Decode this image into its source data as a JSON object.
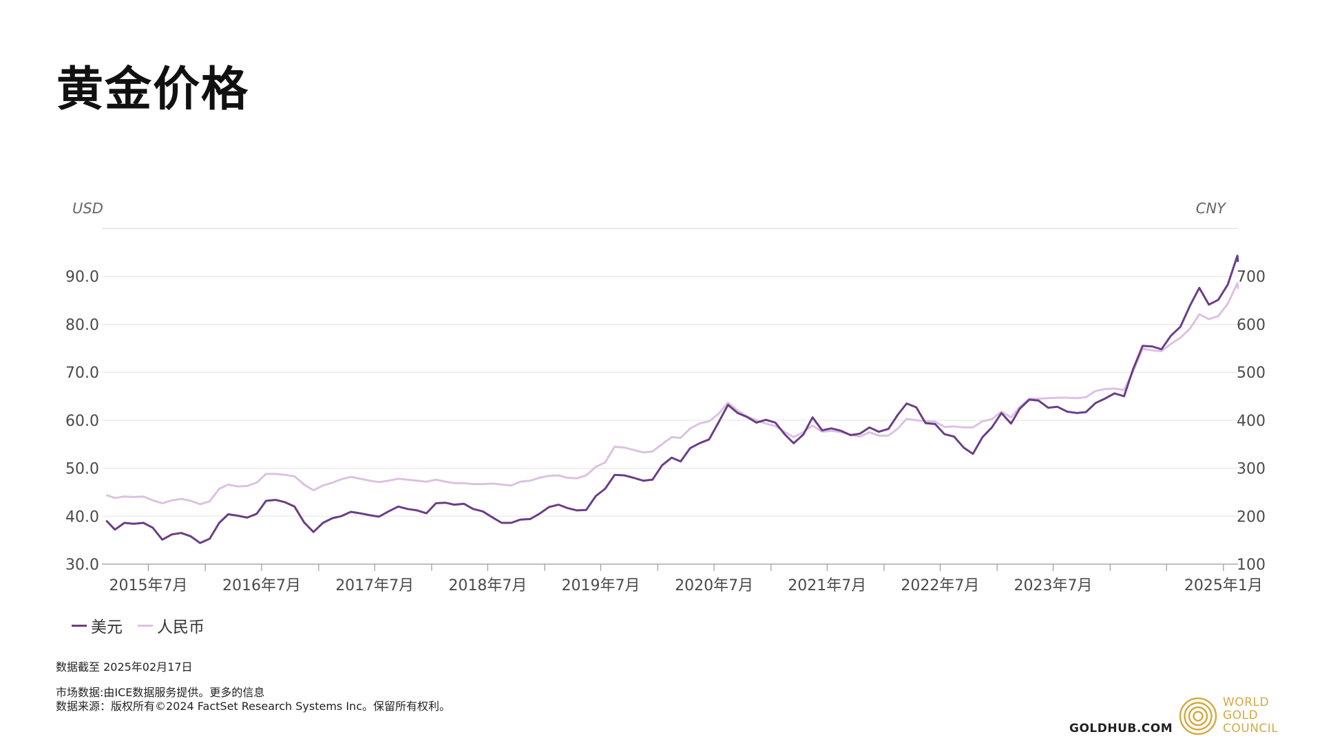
{
  "title": "黄金价格",
  "legend": {
    "usd": "美元",
    "cny": "人民币"
  },
  "footer": {
    "date_line": "数据截至 2025年02月17日",
    "source_line1": "市场数据:由ICE数据服务提供。更多的信息",
    "source_line2": "数据来源：版权所有©2024 FactSet Research Systems Inc。保留所有权利。",
    "site": "GOLDHUB.COM",
    "brand_lines": [
      "WORLD",
      "GOLD",
      "COUNCIL"
    ]
  },
  "colors": {
    "usd": "#6b3d86",
    "cny": "#dcc1e2",
    "grid": "#e2e2e2",
    "brand": "#d4a943"
  },
  "chart_data": {
    "type": "line",
    "title": "黄金价格",
    "left_axis_unit": "USD",
    "right_axis_unit": "CNY",
    "left_ylim": [
      30,
      100
    ],
    "right_ylim": [
      100,
      800
    ],
    "left_ticks": [
      "30.0",
      "40.0",
      "50.0",
      "60.0",
      "70.0",
      "80.0",
      "90.0"
    ],
    "right_ticks": [
      "100",
      "200",
      "300",
      "400",
      "500",
      "600",
      "700"
    ],
    "x_range": [
      "2015-02-01",
      "2025-02-17"
    ],
    "x_tick_labels": [
      {
        "label": "2015年7月",
        "date": "2015-07-01"
      },
      {
        "label": "2016年7月",
        "date": "2016-07-01"
      },
      {
        "label": "2017年7月",
        "date": "2017-07-01"
      },
      {
        "label": "2018年7月",
        "date": "2018-07-01"
      },
      {
        "label": "2019年7月",
        "date": "2019-07-01"
      },
      {
        "label": "2020年7月",
        "date": "2020-07-01"
      },
      {
        "label": "2021年7月",
        "date": "2021-07-01"
      },
      {
        "label": "2022年7月",
        "date": "2022-07-01"
      },
      {
        "label": "2023年7月",
        "date": "2023-07-01"
      },
      {
        "label": "2025年1月",
        "date": "2025-01-01"
      }
    ],
    "x_minor_ticks": [
      "2016-01-01",
      "2017-01-01",
      "2018-01-01",
      "2019-01-01",
      "2020-01-01",
      "2021-01-01",
      "2022-01-01",
      "2023-01-01",
      "2024-01-01",
      "2024-07-01"
    ],
    "grid": true,
    "legend_position": "bottom-left",
    "series": [
      {
        "name": "美元",
        "axis": "left",
        "points": [
          [
            "2015-02",
            39.1
          ],
          [
            "2015-03",
            37.2
          ],
          [
            "2015-04",
            38.6
          ],
          [
            "2015-05",
            38.4
          ],
          [
            "2015-06",
            38.6
          ],
          [
            "2015-07",
            37.6
          ],
          [
            "2015-08",
            35.1
          ],
          [
            "2015-09",
            36.2
          ],
          [
            "2015-10",
            36.5
          ],
          [
            "2015-11",
            35.8
          ],
          [
            "2015-12",
            34.4
          ],
          [
            "2016-01",
            35.3
          ],
          [
            "2016-02",
            38.6
          ],
          [
            "2016-03",
            40.4
          ],
          [
            "2016-04",
            40.1
          ],
          [
            "2016-05",
            39.7
          ],
          [
            "2016-06",
            40.5
          ],
          [
            "2016-07",
            43.2
          ],
          [
            "2016-08",
            43.4
          ],
          [
            "2016-09",
            42.9
          ],
          [
            "2016-10",
            42.0
          ],
          [
            "2016-11",
            38.7
          ],
          [
            "2016-12",
            36.7
          ],
          [
            "2017-01",
            38.6
          ],
          [
            "2017-02",
            39.6
          ],
          [
            "2017-03",
            40.0
          ],
          [
            "2017-04",
            40.9
          ],
          [
            "2017-05",
            40.6
          ],
          [
            "2017-06",
            40.2
          ],
          [
            "2017-07",
            39.9
          ],
          [
            "2017-08",
            41.0
          ],
          [
            "2017-09",
            42.0
          ],
          [
            "2017-10",
            41.5
          ],
          [
            "2017-11",
            41.2
          ],
          [
            "2017-12",
            40.6
          ],
          [
            "2018-01",
            42.7
          ],
          [
            "2018-02",
            42.8
          ],
          [
            "2018-03",
            42.4
          ],
          [
            "2018-04",
            42.6
          ],
          [
            "2018-05",
            41.5
          ],
          [
            "2018-06",
            41.0
          ],
          [
            "2018-07",
            39.8
          ],
          [
            "2018-08",
            38.6
          ],
          [
            "2018-09",
            38.6
          ],
          [
            "2018-10",
            39.3
          ],
          [
            "2018-11",
            39.4
          ],
          [
            "2018-12",
            40.5
          ],
          [
            "2019-01",
            41.9
          ],
          [
            "2019-02",
            42.4
          ],
          [
            "2019-03",
            41.7
          ],
          [
            "2019-04",
            41.2
          ],
          [
            "2019-05",
            41.3
          ],
          [
            "2019-06",
            44.2
          ],
          [
            "2019-07",
            45.7
          ],
          [
            "2019-08",
            48.6
          ],
          [
            "2019-09",
            48.5
          ],
          [
            "2019-10",
            48.0
          ],
          [
            "2019-11",
            47.4
          ],
          [
            "2019-12",
            47.6
          ],
          [
            "2020-01",
            50.6
          ],
          [
            "2020-02",
            52.2
          ],
          [
            "2020-03",
            51.4
          ],
          [
            "2020-04",
            54.2
          ],
          [
            "2020-05",
            55.2
          ],
          [
            "2020-06",
            56.0
          ],
          [
            "2020-07",
            59.5
          ],
          [
            "2020-08",
            63.2
          ],
          [
            "2020-09",
            61.5
          ],
          [
            "2020-10",
            60.7
          ],
          [
            "2020-11",
            59.5
          ],
          [
            "2020-12",
            60.1
          ],
          [
            "2021-01",
            59.5
          ],
          [
            "2021-02",
            57.0
          ],
          [
            "2021-03",
            55.2
          ],
          [
            "2021-04",
            57.0
          ],
          [
            "2021-05",
            60.6
          ],
          [
            "2021-06",
            57.9
          ],
          [
            "2021-07",
            58.3
          ],
          [
            "2021-08",
            57.8
          ],
          [
            "2021-09",
            56.9
          ],
          [
            "2021-10",
            57.2
          ],
          [
            "2021-11",
            58.5
          ],
          [
            "2021-12",
            57.6
          ],
          [
            "2022-01",
            58.2
          ],
          [
            "2022-02",
            61.2
          ],
          [
            "2022-03",
            63.5
          ],
          [
            "2022-04",
            62.7
          ],
          [
            "2022-05",
            59.4
          ],
          [
            "2022-06",
            59.2
          ],
          [
            "2022-07",
            57.1
          ],
          [
            "2022-08",
            56.6
          ],
          [
            "2022-09",
            54.3
          ],
          [
            "2022-10",
            53.0
          ],
          [
            "2022-11",
            56.5
          ],
          [
            "2022-12",
            58.5
          ],
          [
            "2023-01",
            61.5
          ],
          [
            "2023-02",
            59.3
          ],
          [
            "2023-03",
            62.4
          ],
          [
            "2023-04",
            64.3
          ],
          [
            "2023-05",
            64.1
          ],
          [
            "2023-06",
            62.6
          ],
          [
            "2023-07",
            62.8
          ],
          [
            "2023-08",
            61.8
          ],
          [
            "2023-09",
            61.5
          ],
          [
            "2023-10",
            61.7
          ],
          [
            "2023-11",
            63.6
          ],
          [
            "2023-12",
            64.5
          ],
          [
            "2024-01",
            65.6
          ],
          [
            "2024-02",
            65.0
          ],
          [
            "2024-03",
            70.6
          ],
          [
            "2024-04",
            75.5
          ],
          [
            "2024-05",
            75.4
          ],
          [
            "2024-06",
            74.8
          ],
          [
            "2024-07",
            77.6
          ],
          [
            "2024-08",
            79.5
          ],
          [
            "2024-09",
            83.9
          ],
          [
            "2024-10",
            87.6
          ],
          [
            "2024-11",
            84.1
          ],
          [
            "2024-12",
            85.1
          ],
          [
            "2025-01",
            88.3
          ],
          [
            "2025-02",
            94.3
          ],
          [
            "2025-02-17",
            93.0
          ]
        ]
      },
      {
        "name": "人民币",
        "axis": "right",
        "points": [
          [
            "2015-02",
            244
          ],
          [
            "2015-03",
            238
          ],
          [
            "2015-04",
            241
          ],
          [
            "2015-05",
            240
          ],
          [
            "2015-06",
            241
          ],
          [
            "2015-07",
            233
          ],
          [
            "2015-08",
            227
          ],
          [
            "2015-09",
            233
          ],
          [
            "2015-10",
            236
          ],
          [
            "2015-11",
            232
          ],
          [
            "2015-12",
            225
          ],
          [
            "2016-01",
            231
          ],
          [
            "2016-02",
            257
          ],
          [
            "2016-03",
            266
          ],
          [
            "2016-04",
            262
          ],
          [
            "2016-05",
            263
          ],
          [
            "2016-06",
            270
          ],
          [
            "2016-07",
            288
          ],
          [
            "2016-08",
            288
          ],
          [
            "2016-09",
            286
          ],
          [
            "2016-10",
            283
          ],
          [
            "2016-11",
            266
          ],
          [
            "2016-12",
            254
          ],
          [
            "2017-01",
            264
          ],
          [
            "2017-02",
            270
          ],
          [
            "2017-03",
            277
          ],
          [
            "2017-04",
            282
          ],
          [
            "2017-05",
            278
          ],
          [
            "2017-06",
            274
          ],
          [
            "2017-07",
            271
          ],
          [
            "2017-08",
            274
          ],
          [
            "2017-09",
            278
          ],
          [
            "2017-10",
            276
          ],
          [
            "2017-11",
            274
          ],
          [
            "2017-12",
            272
          ],
          [
            "2018-01",
            276
          ],
          [
            "2018-02",
            272
          ],
          [
            "2018-03",
            269
          ],
          [
            "2018-04",
            269
          ],
          [
            "2018-05",
            267
          ],
          [
            "2018-06",
            267
          ],
          [
            "2018-07",
            268
          ],
          [
            "2018-08",
            266
          ],
          [
            "2018-09",
            264
          ],
          [
            "2018-10",
            272
          ],
          [
            "2018-11",
            274
          ],
          [
            "2018-12",
            280
          ],
          [
            "2019-01",
            284
          ],
          [
            "2019-02",
            285
          ],
          [
            "2019-03",
            280
          ],
          [
            "2019-04",
            279
          ],
          [
            "2019-05",
            285
          ],
          [
            "2019-06",
            303
          ],
          [
            "2019-07",
            312
          ],
          [
            "2019-08",
            345
          ],
          [
            "2019-09",
            343
          ],
          [
            "2019-10",
            338
          ],
          [
            "2019-11",
            333
          ],
          [
            "2019-12",
            335
          ],
          [
            "2020-01",
            350
          ],
          [
            "2020-02",
            365
          ],
          [
            "2020-03",
            363
          ],
          [
            "2020-04",
            383
          ],
          [
            "2020-05",
            393
          ],
          [
            "2020-06",
            398
          ],
          [
            "2020-07",
            413
          ],
          [
            "2020-08",
            437
          ],
          [
            "2020-09",
            420
          ],
          [
            "2020-10",
            408
          ],
          [
            "2020-11",
            400
          ],
          [
            "2020-12",
            393
          ],
          [
            "2021-01",
            388
          ],
          [
            "2021-02",
            375
          ],
          [
            "2021-03",
            365
          ],
          [
            "2021-04",
            375
          ],
          [
            "2021-05",
            389
          ],
          [
            "2021-06",
            376
          ],
          [
            "2021-07",
            378
          ],
          [
            "2021-08",
            375
          ],
          [
            "2021-09",
            370
          ],
          [
            "2021-10",
            366
          ],
          [
            "2021-11",
            375
          ],
          [
            "2021-12",
            368
          ],
          [
            "2022-01",
            368
          ],
          [
            "2022-02",
            383
          ],
          [
            "2022-03",
            403
          ],
          [
            "2022-04",
            400
          ],
          [
            "2022-05",
            398
          ],
          [
            "2022-06",
            397
          ],
          [
            "2022-07",
            386
          ],
          [
            "2022-08",
            387
          ],
          [
            "2022-09",
            385
          ],
          [
            "2022-10",
            385
          ],
          [
            "2022-11",
            398
          ],
          [
            "2022-12",
            402
          ],
          [
            "2023-01",
            418
          ],
          [
            "2023-02",
            406
          ],
          [
            "2023-03",
            428
          ],
          [
            "2023-04",
            445
          ],
          [
            "2023-05",
            445
          ],
          [
            "2023-06",
            446
          ],
          [
            "2023-07",
            447
          ],
          [
            "2023-08",
            447
          ],
          [
            "2023-09",
            446
          ],
          [
            "2023-10",
            448
          ],
          [
            "2023-11",
            461
          ],
          [
            "2023-12",
            465
          ],
          [
            "2024-01",
            466
          ],
          [
            "2024-02",
            463
          ],
          [
            "2024-03",
            501
          ],
          [
            "2024-04",
            549
          ],
          [
            "2024-05",
            546
          ],
          [
            "2024-06",
            544
          ],
          [
            "2024-07",
            559
          ],
          [
            "2024-08",
            572
          ],
          [
            "2024-09",
            591
          ],
          [
            "2024-10",
            621
          ],
          [
            "2024-11",
            611
          ],
          [
            "2024-12",
            617
          ],
          [
            "2025-01",
            643
          ],
          [
            "2025-02",
            686
          ],
          [
            "2025-02-17",
            674
          ]
        ]
      }
    ]
  }
}
